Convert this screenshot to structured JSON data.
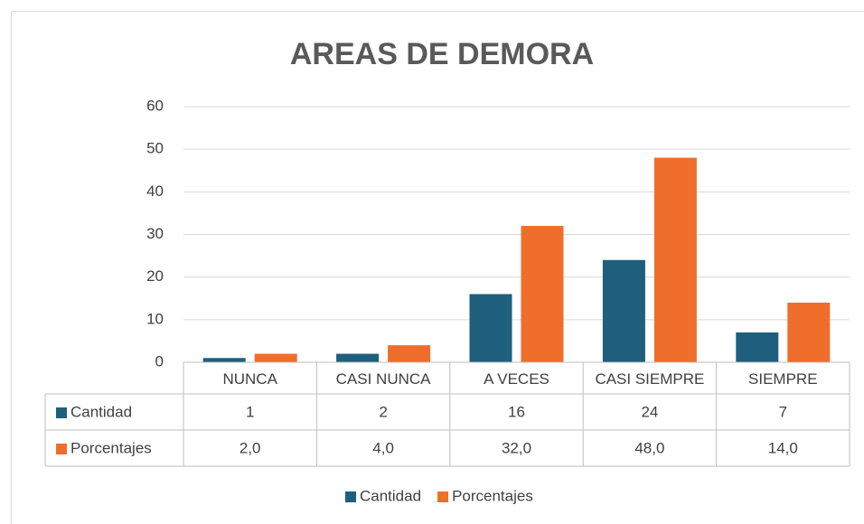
{
  "chart_data": {
    "type": "bar",
    "title": "AREAS DE DEMORA",
    "categories": [
      "NUNCA",
      "CASI NUNCA",
      "A VECES",
      "CASI SIEMPRE",
      "SIEMPRE"
    ],
    "series": [
      {
        "name": "Cantidad",
        "color": "#1f5f7e",
        "values": [
          1,
          2,
          16,
          24,
          7
        ]
      },
      {
        "name": "Porcentajes",
        "color": "#ef6e2c",
        "values": [
          2,
          4,
          32,
          48,
          14
        ],
        "value_labels": [
          "2,0",
          "4,0",
          "32,0",
          "48,0",
          "14,0"
        ]
      }
    ],
    "ylim": [
      0,
      60
    ],
    "yticks": [
      0,
      10,
      20,
      30,
      40,
      50,
      60
    ],
    "grid": true,
    "legend": "bottom",
    "data_table": true
  }
}
